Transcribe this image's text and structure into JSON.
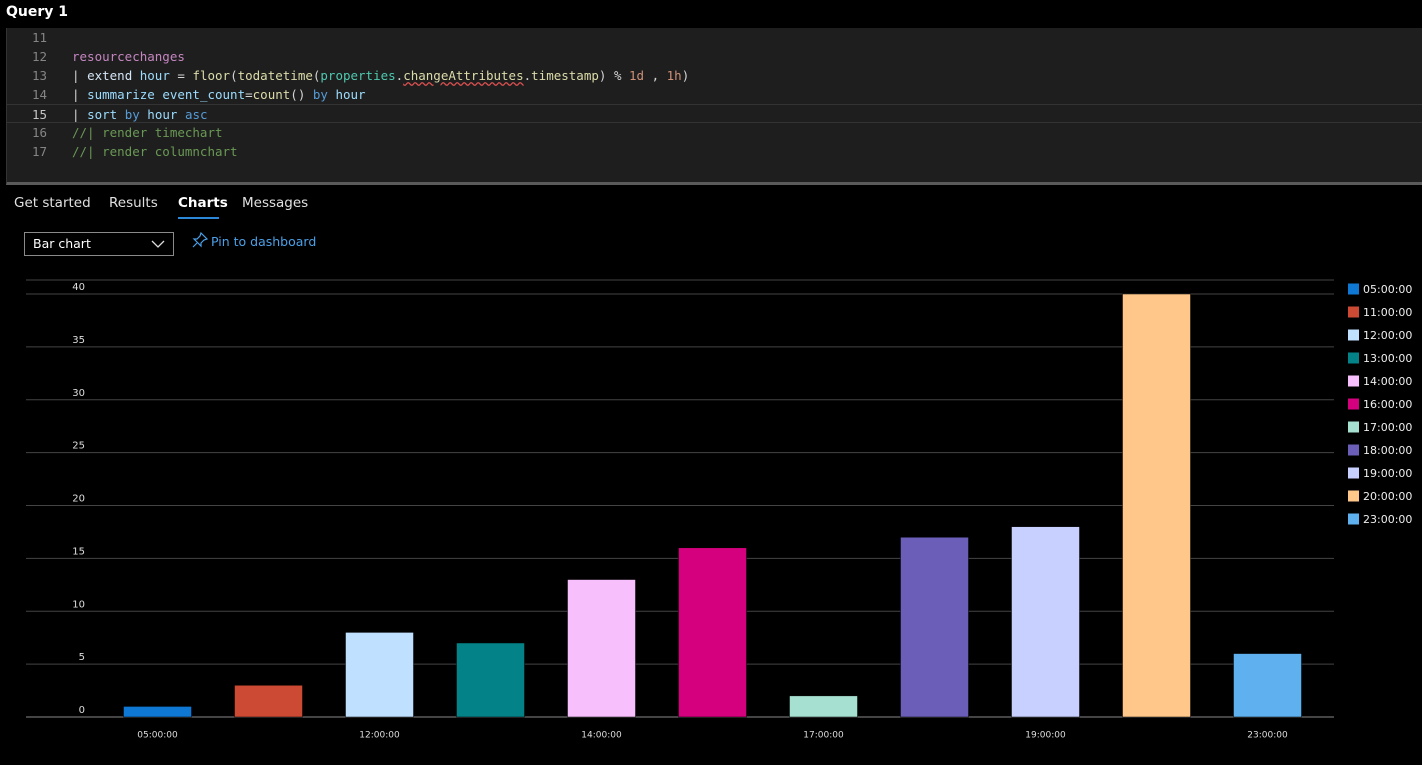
{
  "header": {
    "title": "Query 1"
  },
  "code": {
    "lines": [
      {
        "number": 11
      },
      {
        "number": 12,
        "tokens": [
          {
            "text": "resourcechanges",
            "color": "#c586c0"
          }
        ]
      },
      {
        "number": 13,
        "tokens": [
          {
            "text": "| ",
            "color": "#d4d4d4"
          },
          {
            "text": "extend",
            "color": "#d4e6f5"
          },
          {
            "text": " ",
            "color": "#d4d4d4"
          },
          {
            "text": "hour",
            "color": "#9cdcfe"
          },
          {
            "text": " = ",
            "color": "#d4d4d4"
          },
          {
            "text": "floor",
            "color": "#dcdcaa"
          },
          {
            "text": "(",
            "color": "#d4d4d4"
          },
          {
            "text": "todatetime",
            "color": "#dcdcaa"
          },
          {
            "text": "(",
            "color": "#d4d4d4"
          },
          {
            "text": "properties",
            "color": "#4ec9b0"
          },
          {
            "text": ".",
            "color": "#d4d4d4"
          },
          {
            "text": "changeAttributes",
            "color": "#dcdcaa"
          },
          {
            "text": ".",
            "color": "#d4d4d4"
          },
          {
            "text": "timestamp",
            "color": "#dcdcaa"
          },
          {
            "text": ") % ",
            "color": "#d4d4d4"
          },
          {
            "text": "1d",
            "color": "#ce9178"
          },
          {
            "text": " , ",
            "color": "#d4d4d4"
          },
          {
            "text": "1h",
            "color": "#ce9178"
          },
          {
            "text": ")",
            "color": "#d4d4d4"
          }
        ]
      },
      {
        "number": 14,
        "tokens": [
          {
            "text": "| ",
            "color": "#d4d4d4"
          },
          {
            "text": "summarize",
            "color": "#9cdcfe"
          },
          {
            "text": " ",
            "color": "#d4d4d4"
          },
          {
            "text": "event_count",
            "color": "#9cdcfe"
          },
          {
            "text": "=",
            "color": "#d4d4d4"
          },
          {
            "text": "count",
            "color": "#dcdcaa"
          },
          {
            "text": "() ",
            "color": "#d4d4d4"
          },
          {
            "text": "by",
            "color": "#569cd6"
          },
          {
            "text": " ",
            "color": "#d4d4d4"
          },
          {
            "text": "hour",
            "color": "#9cdcfe"
          }
        ]
      },
      {
        "number": 15,
        "tokens": [
          {
            "text": "| ",
            "color": "#d4d4d4"
          },
          {
            "text": "sort",
            "color": "#9cdcfe"
          },
          {
            "text": " ",
            "color": "#d4d4d4"
          },
          {
            "text": "by",
            "color": "#569cd6"
          },
          {
            "text": " ",
            "color": "#d4d4d4"
          },
          {
            "text": "hour",
            "color": "#9cdcfe"
          },
          {
            "text": " ",
            "color": "#d4d4d4"
          },
          {
            "text": "asc",
            "color": "#569cd6"
          }
        ]
      },
      {
        "number": 16,
        "tokens": [
          {
            "text": "//| render timechart",
            "color": "#6a9955"
          }
        ]
      },
      {
        "number": 17,
        "tokens": [
          {
            "text": "//| render columnchart",
            "color": "#6a9955"
          }
        ]
      }
    ]
  },
  "tabs": [
    "Get started",
    "Results",
    "Charts",
    "Messages"
  ],
  "toolbar": {
    "dropdown": "Bar chart",
    "link": "Pin to dashboard"
  },
  "chart_data": {
    "type": "bar",
    "categories": [
      "05:00:00",
      "11:00:00",
      "12:00:00",
      "13:00:00",
      "14:00:00",
      "16:00:00",
      "17:00:00",
      "18:00:00",
      "19:00:00",
      "20:00:00",
      "23:00:00"
    ],
    "values": [
      1,
      3,
      8,
      7,
      13,
      16,
      2,
      17,
      18,
      40,
      6
    ],
    "colors": [
      "#0f78d4",
      "#cc4a33",
      "#c0e0ff",
      "#038387",
      "#f7c0fc",
      "#d4007e",
      "#a6e0d0",
      "#6b5eb8",
      "#c8d0ff",
      "#ffc88a",
      "#5fb0ee"
    ],
    "ylim": [
      0,
      40
    ],
    "yticks": [
      0,
      5,
      10,
      15,
      20,
      25,
      30,
      35,
      40
    ],
    "grid": true,
    "legend": "right"
  }
}
